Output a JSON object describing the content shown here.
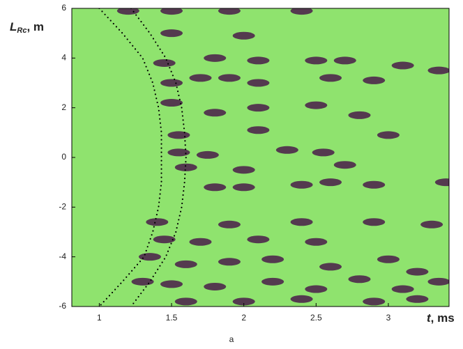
{
  "chart_data": {
    "type": "image-plot",
    "ylabel": {
      "main": "L",
      "sub": "Rc",
      "rest": ", m"
    },
    "xlabel": {
      "main": "t",
      "rest": ", ms"
    },
    "caption": "a",
    "xlim": [
      0.81,
      3.42
    ],
    "xticks": [
      1,
      1.5,
      2,
      2.5,
      3
    ],
    "ylim": [
      -6,
      6
    ],
    "yticks": [
      -6,
      -4,
      -2,
      0,
      2,
      4,
      6
    ],
    "background": "#8fe36e",
    "series": [
      {
        "color": "#000000",
        "x": [
          1.0,
          1.16,
          1.3,
          1.37,
          1.41,
          1.43,
          1.43,
          1.43,
          1.41,
          1.37,
          1.31,
          1.16,
          1.0
        ],
        "y": [
          6,
          5,
          4,
          3,
          2,
          1,
          0,
          -1,
          -2,
          -3,
          -4,
          -5,
          -6
        ]
      },
      {
        "color": "#000000",
        "x": [
          1.22,
          1.35,
          1.46,
          1.53,
          1.57,
          1.59,
          1.6,
          1.59,
          1.57,
          1.53,
          1.46,
          1.35,
          1.22
        ],
        "y": [
          6,
          5,
          4,
          3,
          2,
          1,
          0,
          -1,
          -2,
          -3,
          -4,
          -5,
          -6
        ]
      }
    ],
    "blobs": {
      "color": "#4a1c4a",
      "x": [
        1.2,
        1.5,
        1.9,
        2.4,
        1.5,
        2.0,
        1.45,
        1.8,
        2.1,
        2.5,
        2.7,
        3.1,
        3.35,
        1.5,
        1.7,
        1.9,
        2.1,
        2.6,
        2.9,
        1.5,
        1.8,
        2.1,
        2.5,
        2.8,
        1.55,
        2.1,
        3.0,
        1.55,
        1.75,
        2.3,
        2.55,
        2.7,
        1.6,
        2.0,
        2.6,
        1.8,
        2.0,
        2.4,
        2.9,
        3.4,
        1.4,
        1.9,
        2.4,
        2.9,
        3.3,
        1.45,
        1.7,
        2.1,
        2.5,
        1.35,
        1.6,
        1.9,
        2.2,
        2.6,
        3.0,
        3.2,
        1.3,
        1.5,
        1.8,
        2.2,
        2.5,
        2.8,
        3.1,
        3.35,
        1.6,
        2.0,
        2.4,
        2.9,
        3.2
      ],
      "y": [
        5.9,
        5.9,
        5.9,
        5.9,
        5.0,
        4.9,
        3.8,
        4.0,
        3.9,
        3.9,
        3.9,
        3.7,
        3.5,
        3.0,
        3.2,
        3.2,
        3.0,
        3.2,
        3.1,
        2.2,
        1.8,
        2.0,
        2.1,
        1.7,
        0.9,
        1.1,
        0.9,
        0.2,
        0.1,
        0.3,
        0.2,
        -0.3,
        -0.4,
        -0.5,
        -1.0,
        -1.2,
        -1.2,
        -1.1,
        -1.1,
        -1.0,
        -2.6,
        -2.7,
        -2.6,
        -2.6,
        -2.7,
        -3.3,
        -3.4,
        -3.3,
        -3.4,
        -4.0,
        -4.3,
        -4.2,
        -4.1,
        -4.4,
        -4.1,
        -4.6,
        -5.0,
        -5.1,
        -5.2,
        -5.0,
        -5.3,
        -4.9,
        -5.3,
        -5.0,
        -5.8,
        -5.8,
        -5.7,
        -5.8,
        -5.7
      ]
    }
  }
}
